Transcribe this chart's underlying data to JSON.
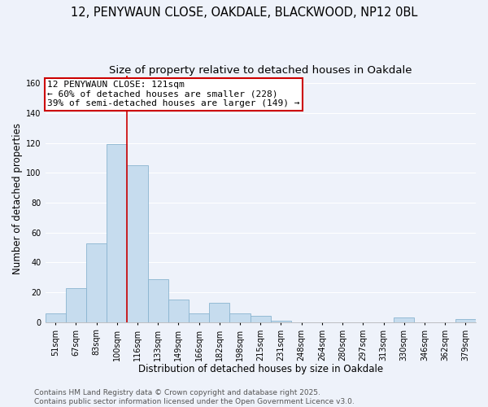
{
  "title": "12, PENYWAUN CLOSE, OAKDALE, BLACKWOOD, NP12 0BL",
  "subtitle": "Size of property relative to detached houses in Oakdale",
  "xlabel": "Distribution of detached houses by size in Oakdale",
  "ylabel": "Number of detached properties",
  "bar_labels": [
    "51sqm",
    "67sqm",
    "83sqm",
    "100sqm",
    "116sqm",
    "133sqm",
    "149sqm",
    "166sqm",
    "182sqm",
    "198sqm",
    "215sqm",
    "231sqm",
    "248sqm",
    "264sqm",
    "280sqm",
    "297sqm",
    "313sqm",
    "330sqm",
    "346sqm",
    "362sqm",
    "379sqm"
  ],
  "bar_values": [
    6,
    23,
    53,
    119,
    105,
    29,
    15,
    6,
    13,
    6,
    4,
    1,
    0,
    0,
    0,
    0,
    0,
    3,
    0,
    0,
    2
  ],
  "bar_color": "#c6dcee",
  "bar_edge_color": "#8ab4d0",
  "vline_color": "#cc0000",
  "vline_x_index": 3.5,
  "ylim": [
    0,
    165
  ],
  "yticks": [
    0,
    20,
    40,
    60,
    80,
    100,
    120,
    140,
    160
  ],
  "annotation_text_line1": "12 PENYWAUN CLOSE: 121sqm",
  "annotation_text_line2": "← 60% of detached houses are smaller (228)",
  "annotation_text_line3": "39% of semi-detached houses are larger (149) →",
  "annotation_box_color": "#ffffff",
  "annotation_box_edge": "#cc0000",
  "footer_line1": "Contains HM Land Registry data © Crown copyright and database right 2025.",
  "footer_line2": "Contains public sector information licensed under the Open Government Licence v3.0.",
  "background_color": "#eef2fa",
  "grid_color": "#ffffff",
  "title_fontsize": 10.5,
  "subtitle_fontsize": 9.5,
  "axis_label_fontsize": 8.5,
  "tick_fontsize": 7,
  "annotation_fontsize": 8,
  "footer_fontsize": 6.5
}
